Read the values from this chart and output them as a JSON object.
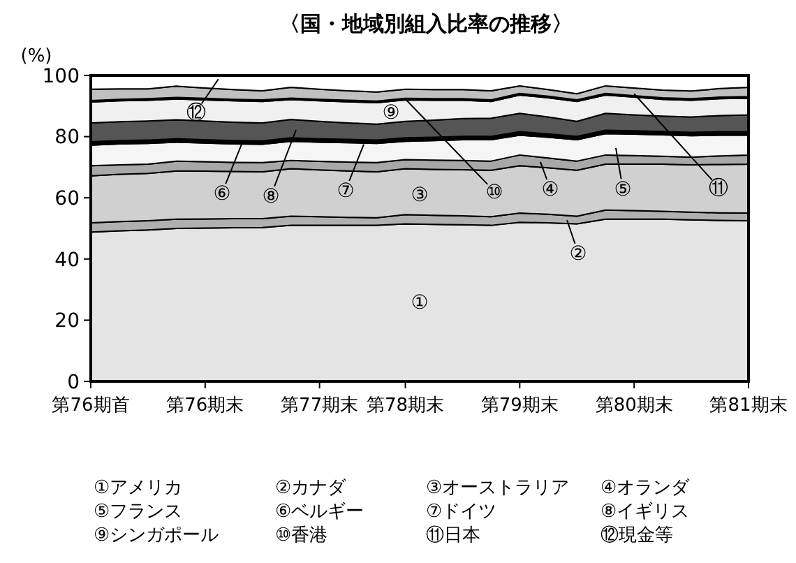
{
  "chart_data": {
    "type": "area",
    "stacked": true,
    "title": "〈国・地域別組入比率の推移〉",
    "ylabel": "(%)",
    "categories": [
      "第76期首",
      null,
      null,
      null,
      "第76期末",
      null,
      null,
      null,
      "第77期末",
      null,
      null,
      "第78期末",
      null,
      null,
      null,
      "第79期末",
      null,
      null,
      null,
      "第80期末",
      null,
      null,
      null,
      "第81期末"
    ],
    "ylim": [
      0,
      100
    ],
    "yticks": [
      0,
      20,
      40,
      60,
      80,
      100
    ],
    "series": [
      {
        "color": "#e4e4e4",
        "values": [
          48.8,
          49.2,
          49.5,
          50,
          50.1,
          50.2,
          50.3,
          51,
          51,
          51,
          51,
          51.5,
          51.3,
          51.2,
          51,
          52,
          51.8,
          51.5,
          53,
          53,
          53,
          52.8,
          52.6,
          52.5
        ]
      },
      {
        "color": "#b0b0b0",
        "values": [
          3,
          3,
          3,
          3,
          3,
          3,
          2.9,
          3,
          2.8,
          2.6,
          2.5,
          3,
          3,
          2.9,
          2.8,
          3,
          2.8,
          2.5,
          3,
          2.8,
          2.6,
          2.5,
          2.5,
          2.5
        ]
      },
      {
        "color": "#d0d0d0",
        "values": [
          15.4,
          15.5,
          15.5,
          15.8,
          15.6,
          15.4,
          15.3,
          15.5,
          15.3,
          15.2,
          15,
          15,
          15,
          15.1,
          15.2,
          15.5,
          15.2,
          15,
          15,
          15.2,
          15.4,
          15.5,
          15.8,
          16
        ]
      },
      {
        "color": "#a8a8a8",
        "values": [
          3.3,
          3.1,
          3,
          3.2,
          3.1,
          3,
          3,
          2.7,
          2.8,
          2.9,
          3,
          3,
          3,
          3,
          3,
          3.5,
          3.2,
          3,
          3,
          2.8,
          2.6,
          2.5,
          2.8,
          3
        ]
      },
      {
        "color": "#f5f5f5",
        "values": [
          6.7,
          6.8,
          6.8,
          6.2,
          6.1,
          6,
          6,
          6.3,
          6.3,
          6.3,
          6.3,
          6,
          6.4,
          6.8,
          7,
          6.5,
          6.8,
          7,
          7,
          7,
          7,
          7,
          6.8,
          6.5
        ]
      },
      {
        "color": "#000000",
        "values": [
          0.6,
          0.6,
          0.6,
          0.6,
          0.6,
          0.6,
          0.6,
          0.6,
          0.6,
          0.6,
          0.6,
          0.6,
          0.6,
          0.6,
          0.6,
          0.6,
          0.6,
          0.6,
          0.6,
          0.6,
          0.6,
          0.6,
          0.6,
          0.6
        ]
      },
      {
        "color": "#1a1a1a",
        "values": [
          0.5,
          0.5,
          0.5,
          0.5,
          0.5,
          0.5,
          0.5,
          0.5,
          0.5,
          0.5,
          0.5,
          0.5,
          0.5,
          0.5,
          0.5,
          0.5,
          0.5,
          0.5,
          0.5,
          0.5,
          0.5,
          0.5,
          0.5,
          0.5
        ]
      },
      {
        "color": "#555555",
        "values": [
          6.2,
          6.2,
          6.2,
          6.2,
          6.1,
          6,
          5.9,
          6,
          5.7,
          5.4,
          5.2,
          5.4,
          5.6,
          5.8,
          5.9,
          6,
          5.5,
          4.9,
          5.5,
          5.2,
          5,
          5,
          5.3,
          5.5
        ]
      },
      {
        "color": "#f0f0f0",
        "values": [
          6.8,
          6.8,
          6.8,
          6.8,
          6.9,
          7,
          7,
          6.5,
          6.7,
          6.9,
          7,
          7,
          6.5,
          6,
          5.5,
          6,
          6.3,
          6.5,
          6,
          5.8,
          5.5,
          5.5,
          5.5,
          5.5
        ]
      },
      {
        "color": "#0d0d0d",
        "values": [
          0.5,
          0.5,
          0.5,
          0.5,
          0.5,
          0.5,
          0.5,
          0.5,
          0.5,
          0.5,
          0.5,
          0.5,
          0.5,
          0.5,
          0.5,
          0.5,
          0.5,
          0.5,
          0.5,
          0.5,
          0.5,
          0.5,
          0.5,
          0.5
        ]
      },
      {
        "color": "#c0c0c0",
        "values": [
          3.7,
          3.4,
          3.2,
          3.7,
          3.4,
          3.2,
          3,
          3.5,
          3.3,
          3.1,
          3,
          3,
          3,
          3,
          3,
          2.5,
          2.2,
          2,
          2.5,
          2.5,
          2.5,
          2.5,
          2.8,
          3
        ]
      },
      {
        "color": "#ffffff",
        "values": [
          4.5,
          4.4,
          4.4,
          3.5,
          4.1,
          4.6,
          5,
          3.9,
          4.5,
          5,
          5.4,
          4.5,
          4.6,
          4.6,
          5,
          3.4,
          4.6,
          6,
          3.4,
          4.1,
          4.8,
          5.1,
          4.3,
          3.9
        ]
      }
    ],
    "annotations": [
      "①",
      {
        "text": "②",
        "y": 52.7
      },
      "③",
      {
        "text": "④",
        "y": 71.7
      },
      {
        "text": "⑤",
        "y": 76.3
      },
      {
        "text": "⑥",
        "y": 77.5
      },
      {
        "text": "⑦",
        "y": 77.5
      },
      "⑧",
      "⑨",
      {
        "text": "⑩",
        "x": "第78期末",
        "y": 92.3
      },
      {
        "text": "⑪",
        "x": "第80期末",
        "y": 94
      },
      {
        "text": "⑫",
        "y": 98.8
      },
      "①アメリカ",
      "②カナダ",
      "③オーストラリア",
      "④オランダ",
      "⑤フランス",
      "⑥ベルギー",
      "⑦ドイツ",
      "⑧イギリス",
      "⑨シンガポール",
      "⑩香港",
      "⑪日本",
      "⑫現金等"
    ]
  }
}
